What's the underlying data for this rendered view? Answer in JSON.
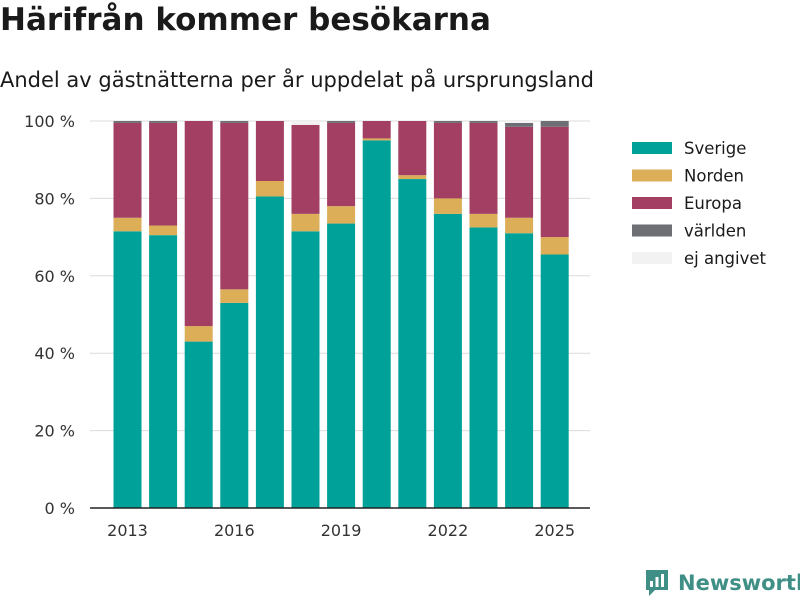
{
  "title": "Härifrån kommer besökarna",
  "subtitle": "Andel av gästnätterna per år uppdelat på ursprungsland",
  "logo_text": "Newsworthy",
  "chart_data": {
    "type": "bar",
    "stacked": true,
    "years": [
      2013,
      2014,
      2015,
      2016,
      2017,
      2018,
      2019,
      2020,
      2021,
      2022,
      2023,
      2024,
      2025
    ],
    "x_ticks": [
      "2013",
      "2016",
      "2019",
      "2022",
      "2025"
    ],
    "y_ticks": [
      "0 %",
      "20 %",
      "40 %",
      "60 %",
      "80 %",
      "100 %"
    ],
    "ylim": [
      0,
      100
    ],
    "grid": "horizontal",
    "legend_position": "right",
    "series": [
      {
        "name": "Sverige",
        "color": "#00a199",
        "values": [
          71.5,
          70.5,
          43.0,
          53.0,
          80.5,
          71.5,
          73.5,
          95.0,
          85.0,
          76.0,
          72.5,
          71.0,
          65.5
        ]
      },
      {
        "name": "Norden",
        "color": "#dcae58",
        "values": [
          3.5,
          2.5,
          4.0,
          3.5,
          4.0,
          4.5,
          4.5,
          0.5,
          1.0,
          4.0,
          3.5,
          4.0,
          4.5
        ]
      },
      {
        "name": "Europa",
        "color": "#a23f63",
        "values": [
          24.5,
          26.5,
          53.0,
          43.0,
          15.5,
          23.0,
          21.5,
          4.5,
          14.0,
          19.5,
          23.5,
          23.5,
          28.5
        ]
      },
      {
        "name": "världen",
        "color": "#6e6e75",
        "values": [
          0.5,
          0.5,
          0.0,
          0.5,
          0.0,
          0.0,
          0.5,
          0.0,
          0.0,
          0.5,
          0.5,
          1.0,
          1.5
        ]
      },
      {
        "name": "ej angivet",
        "color": "#f2f2f2",
        "values": [
          0.0,
          0.0,
          0.0,
          0.0,
          0.0,
          1.0,
          0.0,
          0.0,
          0.0,
          0.0,
          0.0,
          0.5,
          0.0
        ]
      }
    ]
  }
}
